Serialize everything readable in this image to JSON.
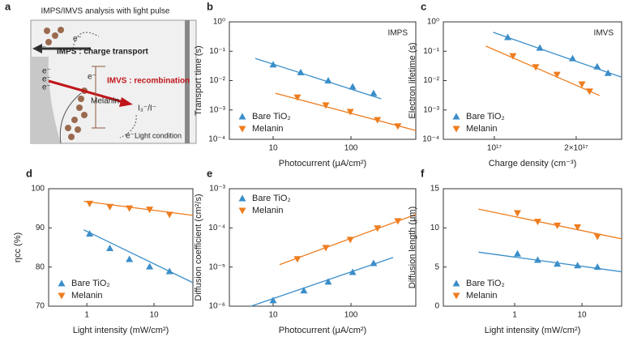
{
  "diagram": {
    "label": "a",
    "title": "IMPS/IMVS analysis with light pulse",
    "imps": "IMPS : charge transport",
    "imvs": "IMVS : recombination",
    "melanin": "Melanin",
    "redox": "I₃⁻/I⁻",
    "condition": "Light condition",
    "electrons": [
      "e⁻",
      "e⁻",
      "e⁻",
      "e⁻",
      "e⁻",
      "e⁻",
      "e⁻"
    ]
  },
  "chart_data": [
    {
      "type": "scatter",
      "label": "b",
      "annotation": "IMPS",
      "xlabel": "Photocurrent (μA/cm²)",
      "ylabel": "Transport time (s)",
      "xscale": "log",
      "yscale": "log",
      "xlim": [
        2.74,
        680
      ],
      "ylim": [
        0.0001,
        1
      ],
      "xticks": [
        10,
        100
      ],
      "yticks": [
        {
          "value": 0.0001,
          "label": "10⁻⁴"
        },
        {
          "value": 0.001,
          "label": "10⁻³"
        },
        {
          "value": 0.01,
          "label": "10⁻²"
        },
        {
          "value": 0.1,
          "label": "10⁻¹"
        },
        {
          "value": 1,
          "label": "10⁰"
        }
      ],
      "legend": "lower left",
      "series": [
        {
          "name": "Bare TiO₂",
          "color": "#3a8ec9",
          "marker": "up",
          "x": [
            10,
            22.6,
            51,
            105,
            195
          ],
          "values": [
            0.035,
            0.019,
            0.01,
            0.0062,
            0.0037
          ],
          "fit": {
            "x": [
              5.9,
              244
            ],
            "values": [
              0.057,
              0.0024
            ]
          }
        },
        {
          "name": "Melanin",
          "color": "#ee7d1f",
          "marker": "down",
          "x": [
            20.5,
            47.5,
            98,
            219,
            400
          ],
          "values": [
            0.0027,
            0.00145,
            0.00087,
            0.00046,
            0.00028
          ],
          "fit": {
            "x": [
              10.7,
              680
            ],
            "values": [
              0.0037,
              0.0002
            ]
          }
        }
      ]
    },
    {
      "type": "scatter",
      "label": "c",
      "annotation": "IMVS",
      "xlabel": "Charge density (cm⁻³)",
      "ylabel": "Electron lifetime (s)",
      "xscale": "log",
      "yscale": "log",
      "xlim": [
        6.49e+16,
        2.94e+17
      ],
      "ylim": [
        0.0001,
        1
      ],
      "xticks": [
        {
          "value": 1e+17,
          "label": "10¹⁷"
        },
        {
          "value": 2e+17,
          "label": "2×10¹⁷"
        }
      ],
      "yticks": [
        {
          "value": 0.0001,
          "label": "10⁻⁴"
        },
        {
          "value": 0.001,
          "label": "10⁻³"
        },
        {
          "value": 0.01,
          "label": "10⁻²"
        },
        {
          "value": 0.1,
          "label": "10⁻¹"
        },
        {
          "value": 1,
          "label": "10⁰"
        }
      ],
      "legend": "lower left",
      "series": [
        {
          "name": "Bare TiO₂",
          "color": "#3a8ec9",
          "marker": "up",
          "x": [
            1.12e+17,
            1.47e+17,
            1.94e+17,
            2.39e+17,
            2.62e+17
          ],
          "values": [
            0.3,
            0.13,
            0.057,
            0.03,
            0.018
          ],
          "fit": {
            "x": [
              9.9e+16,
              2.94e+17
            ],
            "values": [
              0.44,
              0.013
            ]
          }
        },
        {
          "name": "Melanin",
          "color": "#ee7d1f",
          "marker": "down",
          "x": [
            1.17e+17,
            1.42e+17,
            1.7e+17,
            2.1e+17,
            2.24e+17
          ],
          "values": [
            0.069,
            0.029,
            0.016,
            0.0075,
            0.0043
          ],
          "fit": {
            "x": [
              9.3e+16,
              2.44e+17
            ],
            "values": [
              0.15,
              0.0031
            ]
          }
        }
      ]
    },
    {
      "type": "scatter",
      "label": "d",
      "xlabel": "Light intensity (mW/cm²)",
      "ylabel": "ηcc (%)",
      "xscale": "log",
      "yscale": "linear",
      "xlim": [
        0.27,
        37.9
      ],
      "ylim": [
        70,
        100
      ],
      "xticks": [
        1,
        10
      ],
      "yticks": [
        70,
        80,
        90,
        100
      ],
      "legend": "lower left",
      "series": [
        {
          "name": "Bare TiO₂",
          "color": "#3a8ec9",
          "marker": "up",
          "x": [
            1.1,
            2.2,
            4.3,
            8.6,
            17
          ],
          "values": [
            88.5,
            84.8,
            82,
            80.1,
            78.9
          ],
          "fit": {
            "x": [
              0.9,
              37.9
            ],
            "values": [
              89.5,
              76
            ]
          }
        },
        {
          "name": "Melanin",
          "color": "#ee7d1f",
          "marker": "down",
          "x": [
            1.1,
            2.2,
            4.3,
            8.6,
            17
          ],
          "values": [
            96.2,
            95.4,
            95,
            94.7,
            93.4
          ],
          "fit": {
            "x": [
              0.9,
              37.9
            ],
            "values": [
              96.8,
              93.2
            ]
          }
        }
      ]
    },
    {
      "type": "scatter",
      "label": "e",
      "xlabel": "Photocurrent (μA/cm²)",
      "ylabel": "Diffusion coefficient (cm²/s)",
      "xscale": "log",
      "yscale": "log",
      "xlim": [
        2.74,
        680
      ],
      "ylim": [
        1e-06,
        0.001
      ],
      "xticks": [
        10,
        100
      ],
      "yticks": [
        {
          "value": 1e-06,
          "label": "10⁻⁶"
        },
        {
          "value": 1e-05,
          "label": "10⁻⁵"
        },
        {
          "value": 0.0001,
          "label": "10⁻⁴"
        },
        {
          "value": 0.001,
          "label": "10⁻³"
        }
      ],
      "legend": "upper left",
      "series": [
        {
          "name": "Bare TiO₂",
          "color": "#3a8ec9",
          "marker": "up",
          "x": [
            10,
            24.8,
            51,
            105,
            195
          ],
          "values": [
            1.4e-06,
            2.5e-06,
            4.2e-06,
            7.4e-06,
            1.25e-05
          ],
          "fit": {
            "x": [
              5.2,
              348
            ],
            "values": [
              1e-06,
              1.75e-05
            ]
          }
        },
        {
          "name": "Melanin",
          "color": "#ee7d1f",
          "marker": "down",
          "x": [
            20.5,
            47.5,
            98,
            219,
            400
          ],
          "values": [
            1.6e-05,
            3.1e-05,
            5e-05,
            9.8e-05,
            0.00015
          ],
          "fit": {
            "x": [
              12.1,
              680
            ],
            "values": [
              1.15e-05,
              0.00022
            ]
          }
        }
      ]
    },
    {
      "type": "scatter",
      "label": "f",
      "xlabel": "Light intensity (mW/cm²)",
      "ylabel": "Diffusion length (μm)",
      "xscale": "log",
      "yscale": "linear",
      "xlim": [
        0.087,
        38.9
      ],
      "ylim": [
        0,
        15
      ],
      "xticks": [
        1,
        10
      ],
      "yticks": [
        0,
        5,
        10,
        15
      ],
      "legend": "lower left",
      "series": [
        {
          "name": "Bare TiO₂",
          "color": "#3a8ec9",
          "marker": "up",
          "x": [
            1.1,
            2.2,
            4.3,
            8.6,
            17
          ],
          "values": [
            6.7,
            5.9,
            5.4,
            5.2,
            5
          ],
          "fit": {
            "x": [
              0.29,
              38.9
            ],
            "values": [
              6.9,
              4.4
            ]
          }
        },
        {
          "name": "Melanin",
          "color": "#ee7d1f",
          "marker": "down",
          "x": [
            1.1,
            2.2,
            4.3,
            8.6,
            17
          ],
          "values": [
            11.9,
            10.8,
            10.3,
            10.1,
            8.9
          ],
          "fit": {
            "x": [
              0.29,
              38.9
            ],
            "values": [
              12.4,
              8.6
            ]
          }
        }
      ]
    }
  ]
}
